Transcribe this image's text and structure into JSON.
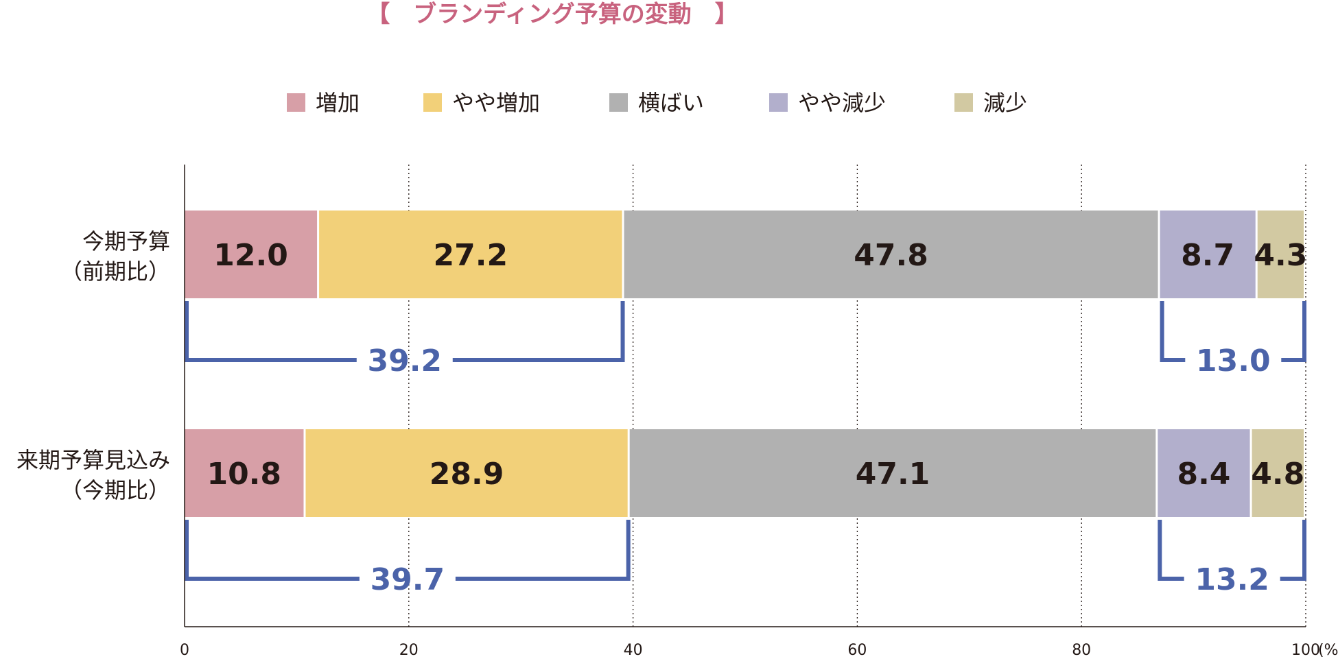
{
  "chart_data": {
    "type": "bar",
    "orientation": "horizontal",
    "stacked": true,
    "title": "【　ブランディング予算の変動　】",
    "categories": [
      [
        "今期予算",
        "（前期比）"
      ],
      [
        "来期予算見込み",
        "（今期比）"
      ]
    ],
    "series": [
      {
        "name": "増加",
        "color": "#d79fa7",
        "values": [
          12.0,
          10.8
        ]
      },
      {
        "name": "やや増加",
        "color": "#f2d079",
        "values": [
          27.2,
          28.9
        ]
      },
      {
        "name": "横ばい",
        "color": "#b1b1b1",
        "values": [
          47.8,
          47.1
        ]
      },
      {
        "name": "やや減少",
        "color": "#b2afcc",
        "values": [
          8.7,
          8.4
        ]
      },
      {
        "name": "減少",
        "color": "#d2c9a2",
        "values": [
          4.3,
          4.8
        ]
      }
    ],
    "xlim": [
      0,
      100
    ],
    "xticks": [
      "0",
      "20",
      "40",
      "60",
      "80",
      "100"
    ],
    "xunit": "(%)",
    "grid": "vertical dotted",
    "legend_position": "top",
    "brackets": [
      [
        {
          "from_series": 0,
          "to_series": 1,
          "value": "39.2"
        },
        {
          "from_series": 3,
          "to_series": 4,
          "value": "13.0"
        }
      ],
      [
        {
          "from_series": 0,
          "to_series": 1,
          "value": "39.7"
        },
        {
          "from_series": 3,
          "to_series": 4,
          "value": "13.2"
        }
      ]
    ],
    "colors": {
      "title": "#c8627e",
      "bracket": "#4b63a9",
      "label": "#231815",
      "axis": "#231815"
    }
  }
}
